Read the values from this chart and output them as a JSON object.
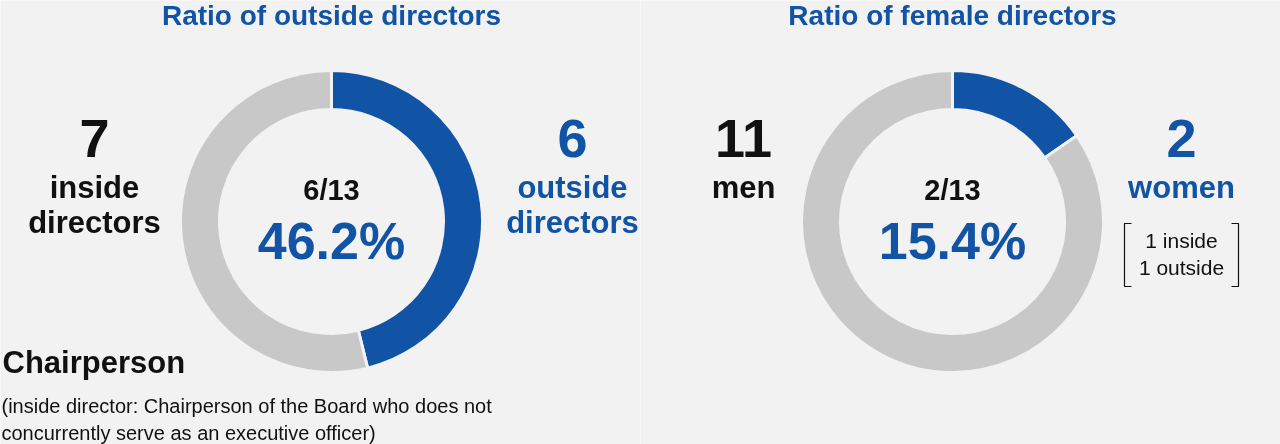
{
  "chart_data": [
    {
      "type": "donut",
      "title": "Ratio of outside directors",
      "categories": [
        "outside directors",
        "inside directors"
      ],
      "values": [
        6,
        7
      ],
      "colors": [
        "#1153a5",
        "#c8c8c8"
      ],
      "data_labels": true,
      "annotations": [
        "6/13",
        "46.2%",
        "Chairperson",
        "(inside director: Chairperson of the Board who does not concurrently serve as an executive officer)"
      ]
    },
    {
      "type": "donut",
      "title": "Ratio of female directors",
      "categories": [
        "women",
        "men"
      ],
      "values": [
        2,
        11
      ],
      "colors": [
        "#1153a5",
        "#c8c8c8"
      ],
      "data_labels": true,
      "annotations": [
        "2/13",
        "15.4%",
        "1 inside",
        "1 outside"
      ]
    }
  ]
}
